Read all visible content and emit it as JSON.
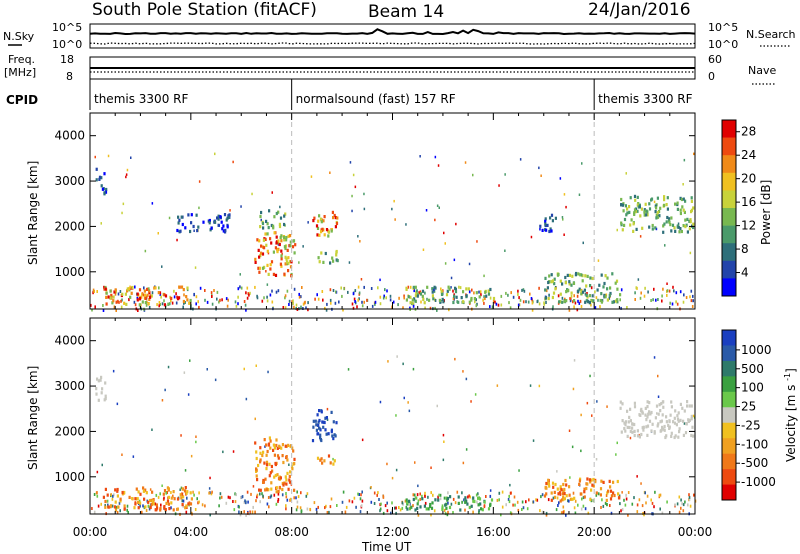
{
  "header": {
    "station": "South Pole Station (fitACF)",
    "beam": "Beam 14",
    "date": "24/Jan/2016"
  },
  "noise_panel": {
    "left_label": "N.Sky",
    "right_label": "N.Search",
    "left_ticks": [
      "10^5",
      "10^0"
    ],
    "right_ticks": [
      "10^5",
      "10^0"
    ]
  },
  "freq_panel": {
    "left_label_1": "Freq.",
    "left_label_2": "[MHz]",
    "right_label": "Nave",
    "left_ticks": [
      "18",
      "8"
    ],
    "right_ticks": [
      "60",
      "0"
    ]
  },
  "cpid": {
    "label": "CPID",
    "segments": [
      {
        "text": "themis 3300 RF",
        "start_h": 0,
        "end_h": 8
      },
      {
        "text": "normalsound (fast) 157 RF",
        "start_h": 8,
        "end_h": 20
      },
      {
        "text": "themis 3300 RF",
        "start_h": 20,
        "end_h": 24
      }
    ]
  },
  "chart_data": [
    {
      "type": "heatmap",
      "name": "Power",
      "ylabel": "Slant Range [km]",
      "xlabel": "Time UT",
      "xlim": [
        0,
        24
      ],
      "ylim": [
        180,
        4500
      ],
      "x_ticks": [
        "00:00",
        "04:00",
        "08:00",
        "12:00",
        "16:00",
        "20:00",
        "00:00"
      ],
      "y_ticks": [
        "1000",
        "2000",
        "3000",
        "4000"
      ],
      "colorbar": {
        "label": "Power [dB]",
        "ticks": [
          "4",
          "8",
          "12",
          "16",
          "20",
          "24",
          "28"
        ],
        "range": [
          0,
          30
        ],
        "colors": [
          "#0000ff",
          "#2244aa",
          "#2e6f7a",
          "#4a9a6a",
          "#78b850",
          "#c8d23a",
          "#f0c020",
          "#f08a18",
          "#ee4a10",
          "#e00000"
        ]
      },
      "regions": [
        {
          "t": [
            0.2,
            0.6
          ],
          "r": [
            2700,
            3300
          ],
          "level": "low"
        },
        {
          "t": [
            3.3,
            5.5
          ],
          "r": [
            1900,
            2300
          ],
          "level": "low"
        },
        {
          "t": [
            6.7,
            7.7
          ],
          "r": [
            2000,
            2400
          ],
          "level": "mid"
        },
        {
          "t": [
            6.5,
            8.1
          ],
          "r": [
            900,
            1900
          ],
          "level": "high"
        },
        {
          "t": [
            8.8,
            9.8
          ],
          "r": [
            1800,
            2400
          ],
          "level": "high"
        },
        {
          "t": [
            9.0,
            9.8
          ],
          "r": [
            1200,
            1500
          ],
          "level": "mid"
        },
        {
          "t": [
            0.5,
            4.0
          ],
          "r": [
            300,
            700
          ],
          "level": "high"
        },
        {
          "t": [
            12.5,
            16.0
          ],
          "r": [
            350,
            700
          ],
          "level": "mid"
        },
        {
          "t": [
            17.8,
            18.5
          ],
          "r": [
            1900,
            2300
          ],
          "level": "low"
        },
        {
          "t": [
            18.0,
            21.0
          ],
          "r": [
            350,
            1000
          ],
          "level": "mid"
        },
        {
          "t": [
            21.0,
            23.9
          ],
          "r": [
            1900,
            2700
          ],
          "level": "mid"
        }
      ]
    },
    {
      "type": "heatmap",
      "name": "Velocity",
      "ylabel": "Slant Range [km]",
      "xlabel": "Time UT",
      "xlim": [
        0,
        24
      ],
      "ylim": [
        180,
        4500
      ],
      "x_ticks": [
        "00:00",
        "04:00",
        "08:00",
        "12:00",
        "16:00",
        "20:00",
        "00:00"
      ],
      "y_ticks": [
        "1000",
        "2000",
        "3000",
        "4000"
      ],
      "colorbar": {
        "label": "Velocity [m s^-1]",
        "ticks": [
          "1000",
          "500",
          "100",
          "25",
          "-25",
          "-100",
          "-500",
          "-1000"
        ],
        "colors": [
          "#1a3fc0",
          "#2a5aa8",
          "#2e7a6a",
          "#3aa040",
          "#6ac84a",
          "#c8c8c0",
          "#f0c020",
          "#f0a020",
          "#f07818",
          "#ee4a10",
          "#e00000"
        ]
      },
      "regions": [
        {
          "t": [
            0.2,
            0.6
          ],
          "r": [
            2700,
            3300
          ],
          "level": "grey"
        },
        {
          "t": [
            6.5,
            8.1
          ],
          "r": [
            700,
            1900
          ],
          "level": "orange"
        },
        {
          "t": [
            8.8,
            9.8
          ],
          "r": [
            1800,
            2500
          ],
          "level": "blue"
        },
        {
          "t": [
            9.0,
            9.8
          ],
          "r": [
            1300,
            1500
          ],
          "level": "orange"
        },
        {
          "t": [
            0.5,
            4.0
          ],
          "r": [
            300,
            800
          ],
          "level": "orange"
        },
        {
          "t": [
            12.5,
            16.0
          ],
          "r": [
            300,
            600
          ],
          "level": "green"
        },
        {
          "t": [
            18.0,
            21.0
          ],
          "r": [
            500,
            1000
          ],
          "level": "orange"
        },
        {
          "t": [
            21.0,
            23.9
          ],
          "r": [
            1900,
            2700
          ],
          "level": "grey"
        }
      ]
    }
  ]
}
